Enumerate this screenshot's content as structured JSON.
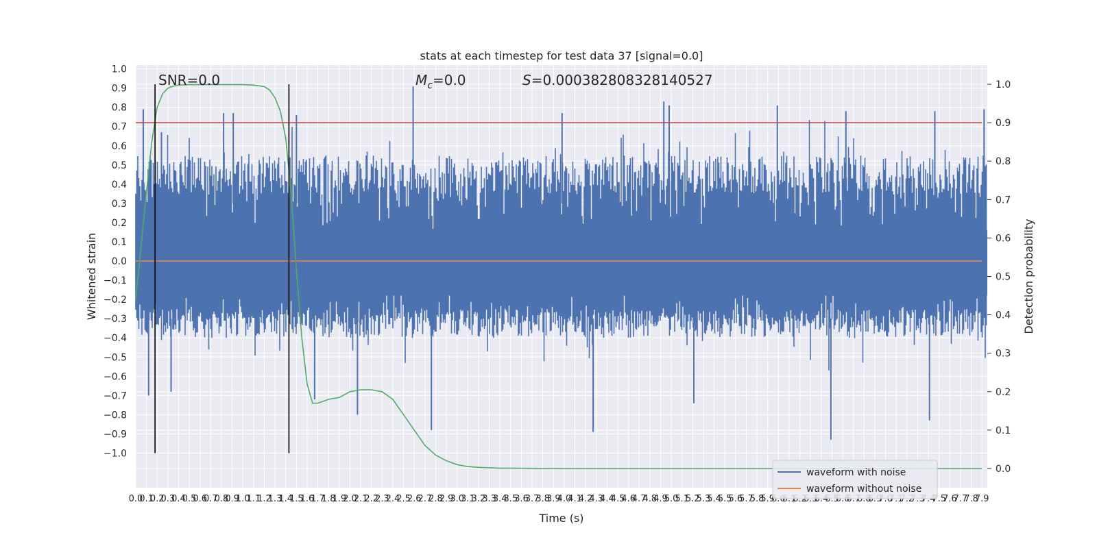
{
  "chart_data": {
    "type": "line",
    "title": "stats at each timestep for test data 37 [signal=0.0]",
    "xlabel": "Time (s)",
    "ylabel": "Whitened strain",
    "y2label": "Detection probability",
    "xlim": [
      0.0,
      7.95
    ],
    "ylim": [
      -1.18,
      1.02
    ],
    "y2lim": [
      -0.05,
      1.05
    ],
    "x_ticks": [
      "0.0",
      "0.1",
      "0.2",
      "0.3",
      "0.4",
      "0.5",
      "0.6",
      "0.7",
      "0.8",
      "0.9",
      "1.0",
      "1.1",
      "1.2",
      "1.3",
      "1.4",
      "1.5",
      "1.6",
      "1.7",
      "1.8",
      "1.9",
      "2.0",
      "2.1",
      "2.2",
      "2.3",
      "2.4",
      "2.5",
      "2.6",
      "2.7",
      "2.8",
      "2.9",
      "3.0",
      "3.1",
      "3.2",
      "3.3",
      "3.4",
      "3.5",
      "3.6",
      "3.7",
      "3.8",
      "3.9",
      "4.0",
      "4.1",
      "4.2",
      "4.3",
      "4.4",
      "4.5",
      "4.6",
      "4.7",
      "4.8",
      "4.9",
      "5.0",
      "5.1",
      "5.2",
      "5.3",
      "5.4",
      "5.5",
      "5.6",
      "5.7",
      "5.8",
      "5.9",
      "6.0",
      "6.1",
      "6.2",
      "6.3",
      "6.4",
      "6.5",
      "6.6",
      "6.7",
      "6.8",
      "6.9",
      "7.0",
      "7.1",
      "7.2",
      "7.3",
      "7.4",
      "7.5",
      "7.6",
      "7.7",
      "7.8",
      "7.9"
    ],
    "x_tick_values": [
      0.0,
      0.1,
      0.2,
      0.3,
      0.4,
      0.5,
      0.6,
      0.7,
      0.8,
      0.9,
      1.0,
      1.1,
      1.2,
      1.3,
      1.4,
      1.5,
      1.6,
      1.7,
      1.8,
      1.9,
      2.0,
      2.1,
      2.2,
      2.3,
      2.4,
      2.5,
      2.6,
      2.7,
      2.8,
      2.9,
      3.0,
      3.1,
      3.2,
      3.3,
      3.4,
      3.5,
      3.6,
      3.7,
      3.8,
      3.9,
      4.0,
      4.1,
      4.2,
      4.3,
      4.4,
      4.5,
      4.6,
      4.7,
      4.8,
      4.9,
      5.0,
      5.1,
      5.2,
      5.3,
      5.4,
      5.5,
      5.6,
      5.7,
      5.8,
      5.9,
      6.0,
      6.1,
      6.2,
      6.3,
      6.4,
      6.5,
      6.6,
      6.7,
      6.8,
      6.9,
      7.0,
      7.1,
      7.2,
      7.3,
      7.4,
      7.5,
      7.6,
      7.7,
      7.8,
      7.9
    ],
    "y_ticks": [
      "1.0",
      "0.9",
      "0.8",
      "0.7",
      "0.6",
      "0.5",
      "0.4",
      "0.3",
      "0.2",
      "0.1",
      "0.0",
      "−0.1",
      "−0.2",
      "−0.3",
      "−0.4",
      "−0.5",
      "−0.6",
      "−0.7",
      "−0.8",
      "−0.9",
      "−1.0"
    ],
    "y_tick_values": [
      1.0,
      0.9,
      0.8,
      0.7,
      0.6,
      0.5,
      0.4,
      0.3,
      0.2,
      0.1,
      0.0,
      -0.1,
      -0.2,
      -0.3,
      -0.4,
      -0.5,
      -0.6,
      -0.7,
      -0.8,
      -0.9,
      -1.0
    ],
    "y2_ticks": [
      "1.0",
      "0.9",
      "0.8",
      "0.7",
      "0.6",
      "0.5",
      "0.4",
      "0.3",
      "0.2",
      "0.1",
      "0.0"
    ],
    "y2_tick_values": [
      1.0,
      0.9,
      0.8,
      0.7,
      0.6,
      0.5,
      0.4,
      0.3,
      0.2,
      0.1,
      0.0
    ],
    "annotations": {
      "snr": "SNR=0.0",
      "mc": "=0.0",
      "mc_symbol": "M",
      "mc_sub": "c",
      "s": "=0.000382808328140527",
      "s_symbol": "S"
    },
    "legend": {
      "position": "bottom-right",
      "entries": [
        {
          "label": "waveform with noise",
          "color": "#4c72b0"
        },
        {
          "label": "waveform without noise",
          "color": "#dd8452"
        }
      ]
    },
    "series": [
      {
        "name": "waveform with noise",
        "color": "#4c72b0",
        "style": "noise-band",
        "upper_typical": [
          0.35,
          0.55
        ],
        "lower_typical": [
          -0.4,
          -0.25
        ],
        "spikes": [
          {
            "x": 0.07,
            "y": 0.79
          },
          {
            "x": 0.12,
            "y": -0.7
          },
          {
            "x": 0.24,
            "y": 0.67
          },
          {
            "x": 0.33,
            "y": -0.68
          },
          {
            "x": 0.82,
            "y": 0.77
          },
          {
            "x": 0.91,
            "y": 0.77
          },
          {
            "x": 1.5,
            "y": 0.76
          },
          {
            "x": 1.67,
            "y": -0.72
          },
          {
            "x": 2.07,
            "y": -0.8
          },
          {
            "x": 2.59,
            "y": 0.91
          },
          {
            "x": 2.76,
            "y": -0.88
          },
          {
            "x": 3.98,
            "y": 0.77
          },
          {
            "x": 4.27,
            "y": -0.89
          },
          {
            "x": 4.93,
            "y": 0.83
          },
          {
            "x": 4.98,
            "y": 0.81
          },
          {
            "x": 5.21,
            "y": -0.74
          },
          {
            "x": 5.99,
            "y": 0.81
          },
          {
            "x": 6.49,
            "y": -0.93
          },
          {
            "x": 6.63,
            "y": 0.78
          },
          {
            "x": 7.41,
            "y": -0.83
          },
          {
            "x": 7.46,
            "y": 0.78
          },
          {
            "x": 7.92,
            "y": 0.79
          }
        ]
      },
      {
        "name": "waveform without noise",
        "color": "#dd8452",
        "x": [
          0.0,
          7.95
        ],
        "y": [
          0.0,
          0.0
        ]
      },
      {
        "name": "",
        "color": "#55a868",
        "axis": "right",
        "x": [
          0.0,
          0.05,
          0.1,
          0.15,
          0.2,
          0.25,
          0.3,
          0.35,
          0.4,
          0.5,
          0.6,
          0.7,
          0.8,
          0.9,
          1.0,
          1.1,
          1.2,
          1.25,
          1.3,
          1.35,
          1.4,
          1.45,
          1.5,
          1.55,
          1.6,
          1.65,
          1.7,
          1.75,
          1.8,
          1.9,
          2.0,
          2.1,
          2.2,
          2.3,
          2.4,
          2.5,
          2.6,
          2.7,
          2.8,
          2.9,
          3.0,
          3.1,
          3.2,
          3.3,
          3.4,
          3.5,
          4.0,
          5.0,
          6.0,
          7.0,
          7.9
        ],
        "y": [
          0.44,
          0.58,
          0.72,
          0.85,
          0.94,
          0.975,
          0.99,
          0.995,
          0.998,
          0.999,
          0.999,
          0.999,
          0.999,
          0.999,
          0.999,
          0.998,
          0.994,
          0.985,
          0.965,
          0.93,
          0.86,
          0.72,
          0.52,
          0.34,
          0.22,
          0.17,
          0.17,
          0.175,
          0.18,
          0.185,
          0.2,
          0.205,
          0.205,
          0.2,
          0.18,
          0.14,
          0.1,
          0.06,
          0.035,
          0.02,
          0.01,
          0.005,
          0.003,
          0.002,
          0.001,
          0.001,
          0.0,
          0.0,
          0.0,
          0.0,
          0.0
        ]
      },
      {
        "name": "",
        "color": "#c44e52",
        "axis": "right",
        "x": [
          0.0,
          7.95
        ],
        "y": [
          0.9,
          0.9
        ]
      }
    ],
    "vertical_lines": [
      {
        "x": 0.18,
        "color": "#000000"
      },
      {
        "x": 1.43,
        "color": "#000000"
      }
    ],
    "vertical_lines_span": [
      -1.0,
      0.92
    ],
    "grid": true
  }
}
